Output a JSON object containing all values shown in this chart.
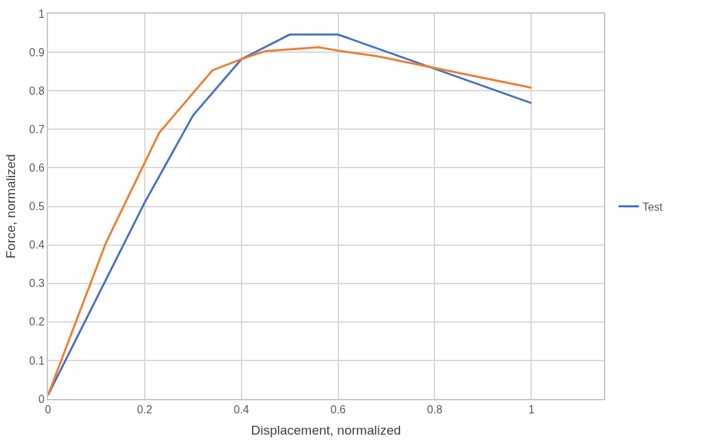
{
  "chart_data": {
    "type": "line",
    "xlabel": "Displacement, normalized",
    "ylabel": "Force, normalized",
    "series": [
      {
        "name": "Test",
        "color": "#4472c4",
        "x": [
          0,
          0.2,
          0.3,
          0.4,
          0.5,
          0.6,
          1
        ],
        "values": [
          0.01,
          0.51,
          0.736,
          0.882,
          0.946,
          0.946,
          0.768
        ]
      },
      {
        "color": "#ed7d31",
        "x": [
          0,
          0.12,
          0.23,
          0.34,
          0.4,
          0.45,
          0.56,
          0.6,
          0.68,
          1
        ],
        "values": [
          0.01,
          0.406,
          0.691,
          0.853,
          0.882,
          0.903,
          0.913,
          0.904,
          0.89,
          0.808
        ]
      }
    ],
    "xlim": [
      0,
      1.15
    ],
    "xticks": [
      0,
      0.2,
      0.4,
      0.6,
      0.8,
      1
    ],
    "ylim": [
      0,
      1
    ],
    "yticks": [
      0,
      0.1,
      0.2,
      0.3,
      0.4,
      0.5,
      0.6,
      0.7,
      0.8,
      0.9,
      1
    ],
    "grid": true,
    "legend": "right",
    "marker": "none",
    "line_style": "solid"
  }
}
